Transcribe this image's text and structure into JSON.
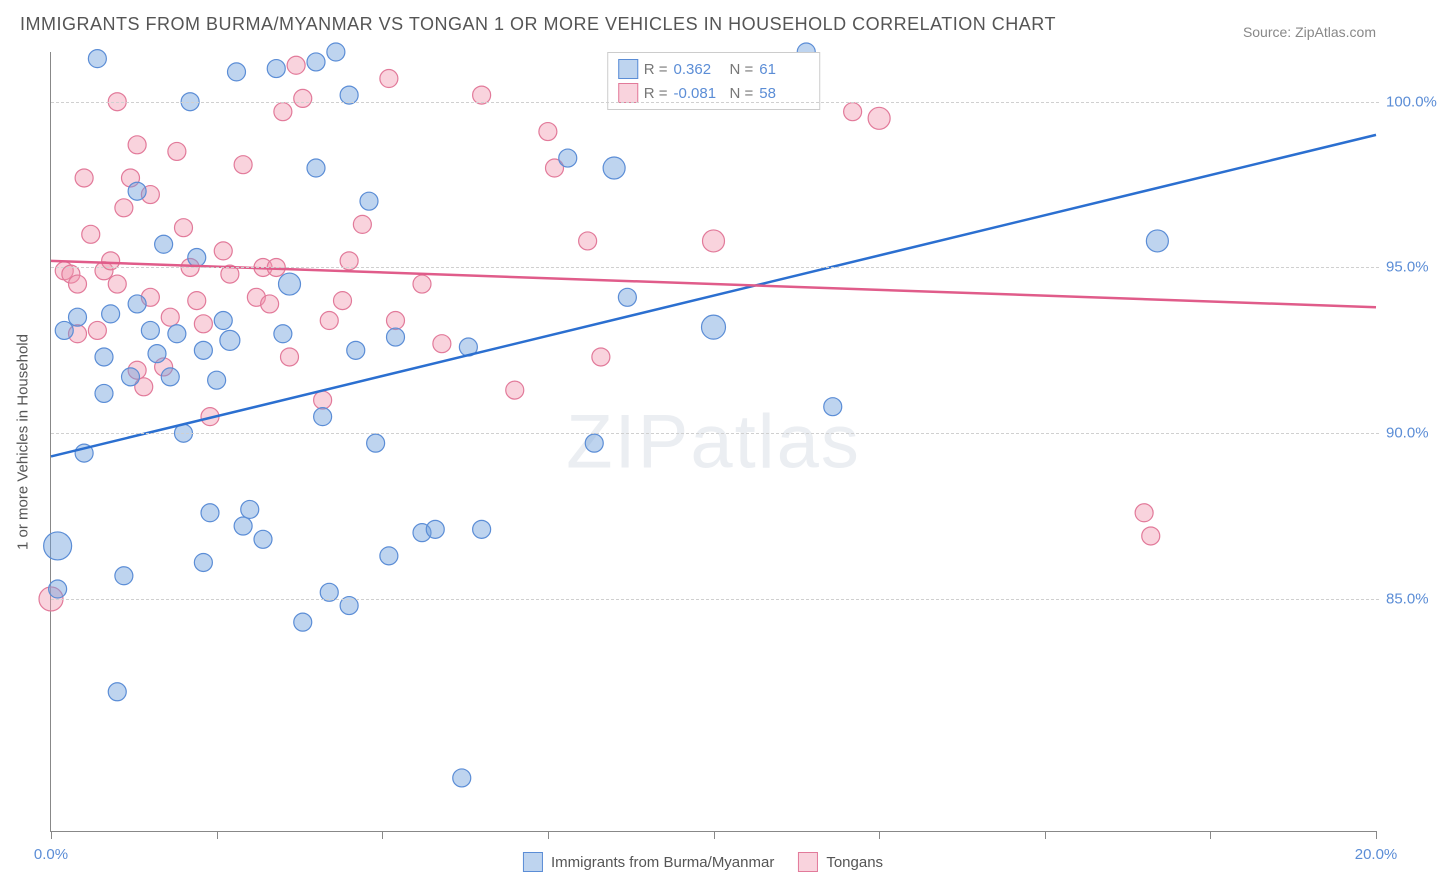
{
  "title": "IMMIGRANTS FROM BURMA/MYANMAR VS TONGAN 1 OR MORE VEHICLES IN HOUSEHOLD CORRELATION CHART",
  "source": "Source: ZipAtlas.com",
  "watermark": {
    "brand_a": "ZIP",
    "brand_b": "atlas"
  },
  "chart": {
    "type": "scatter",
    "x_axis": {
      "min": 0.0,
      "max": 20.0,
      "tick_labels": [
        "0.0%",
        "20.0%"
      ],
      "tick_positions_minor_pct": [
        0,
        12.5,
        25,
        37.5,
        50,
        62.5,
        75,
        87.5,
        100
      ],
      "label_color": "#5b8dd6",
      "label_fontsize": 15
    },
    "y_axis": {
      "min": 78.0,
      "max": 101.5,
      "label": "1 or more Vehicles in Household",
      "grid_values": [
        85.0,
        90.0,
        95.0,
        100.0
      ],
      "grid_labels": [
        "85.0%",
        "90.0%",
        "95.0%",
        "100.0%"
      ],
      "grid_color": "#d0d0d0",
      "label_color": "#555555",
      "tick_label_color": "#5b8dd6",
      "label_fontsize": 15
    },
    "series": [
      {
        "id": "burma",
        "name": "Immigrants from Burma/Myanmar",
        "marker_fill": "rgba(110,160,220,0.45)",
        "marker_stroke": "#5b8dd6",
        "line_color": "#2b6fd0",
        "line_width": 2.5,
        "r_value": "0.362",
        "n_value": "61",
        "trend": {
          "x1": 0,
          "y1": 89.3,
          "x2": 20,
          "y2": 99.0
        },
        "points": [
          [
            0.1,
            86.6,
            14
          ],
          [
            0.2,
            93.1,
            9
          ],
          [
            0.4,
            93.5,
            9
          ],
          [
            0.5,
            89.4,
            9
          ],
          [
            0.7,
            101.3,
            9
          ],
          [
            0.8,
            92.3,
            9
          ],
          [
            0.8,
            91.2,
            9
          ],
          [
            0.9,
            93.6,
            9
          ],
          [
            1.0,
            82.2,
            9
          ],
          [
            1.1,
            85.7,
            9
          ],
          [
            1.2,
            91.7,
            9
          ],
          [
            1.3,
            93.9,
            9
          ],
          [
            1.3,
            97.3,
            9
          ],
          [
            1.5,
            93.1,
            9
          ],
          [
            1.6,
            92.4,
            9
          ],
          [
            1.7,
            95.7,
            9
          ],
          [
            1.8,
            91.7,
            9
          ],
          [
            1.9,
            93.0,
            9
          ],
          [
            2.0,
            90.0,
            9
          ],
          [
            2.1,
            100.0,
            9
          ],
          [
            2.2,
            95.3,
            9
          ],
          [
            2.3,
            92.5,
            9
          ],
          [
            2.3,
            86.1,
            9
          ],
          [
            2.4,
            87.6,
            9
          ],
          [
            2.5,
            91.6,
            9
          ],
          [
            2.6,
            93.4,
            9
          ],
          [
            2.7,
            92.8,
            10
          ],
          [
            2.8,
            100.9,
            9
          ],
          [
            2.9,
            87.2,
            9
          ],
          [
            3.0,
            87.7,
            9
          ],
          [
            3.2,
            86.8,
            9
          ],
          [
            3.4,
            101.0,
            9
          ],
          [
            3.5,
            93.0,
            9
          ],
          [
            3.6,
            94.5,
            11
          ],
          [
            3.8,
            84.3,
            9
          ],
          [
            4.0,
            98.0,
            9
          ],
          [
            4.0,
            101.2,
            9
          ],
          [
            4.1,
            90.5,
            9
          ],
          [
            4.2,
            85.2,
            9
          ],
          [
            4.3,
            101.5,
            9
          ],
          [
            4.5,
            100.2,
            9
          ],
          [
            4.5,
            84.8,
            9
          ],
          [
            4.6,
            92.5,
            9
          ],
          [
            4.8,
            97.0,
            9
          ],
          [
            4.9,
            89.7,
            9
          ],
          [
            5.1,
            86.3,
            9
          ],
          [
            5.2,
            92.9,
            9
          ],
          [
            5.6,
            87.0,
            9
          ],
          [
            5.8,
            87.1,
            9
          ],
          [
            6.2,
            79.6,
            9
          ],
          [
            6.3,
            92.6,
            9
          ],
          [
            6.5,
            87.1,
            9
          ],
          [
            7.8,
            98.3,
            9
          ],
          [
            8.2,
            89.7,
            9
          ],
          [
            8.5,
            98.0,
            11
          ],
          [
            8.7,
            94.1,
            9
          ],
          [
            10.0,
            93.2,
            12
          ],
          [
            11.4,
            101.5,
            9
          ],
          [
            11.8,
            90.8,
            9
          ],
          [
            16.7,
            95.8,
            11
          ],
          [
            0.1,
            85.3,
            9
          ]
        ]
      },
      {
        "id": "tongan",
        "name": "Tongans",
        "marker_fill": "rgba(240,150,175,0.42)",
        "marker_stroke": "#e27a9a",
        "line_color": "#e05c8a",
        "line_width": 2.5,
        "r_value": "-0.081",
        "n_value": "58",
        "trend": {
          "x1": 0,
          "y1": 95.2,
          "x2": 20,
          "y2": 93.8
        },
        "points": [
          [
            0.0,
            85.0,
            12
          ],
          [
            0.2,
            94.9,
            9
          ],
          [
            0.3,
            94.8,
            9
          ],
          [
            0.4,
            93.0,
            9
          ],
          [
            0.5,
            97.7,
            9
          ],
          [
            0.6,
            96.0,
            9
          ],
          [
            0.7,
            93.1,
            9
          ],
          [
            0.8,
            94.9,
            9
          ],
          [
            0.9,
            95.2,
            9
          ],
          [
            1.0,
            100.0,
            9
          ],
          [
            1.1,
            96.8,
            9
          ],
          [
            1.2,
            97.7,
            9
          ],
          [
            1.3,
            91.9,
            9
          ],
          [
            1.3,
            98.7,
            9
          ],
          [
            1.4,
            91.4,
            9
          ],
          [
            1.5,
            94.1,
            9
          ],
          [
            1.5,
            97.2,
            9
          ],
          [
            1.7,
            92.0,
            9
          ],
          [
            1.8,
            93.5,
            9
          ],
          [
            1.9,
            98.5,
            9
          ],
          [
            2.0,
            96.2,
            9
          ],
          [
            2.1,
            95.0,
            9
          ],
          [
            2.2,
            94.0,
            9
          ],
          [
            2.3,
            93.3,
            9
          ],
          [
            2.4,
            90.5,
            9
          ],
          [
            2.6,
            95.5,
            9
          ],
          [
            2.7,
            94.8,
            9
          ],
          [
            2.9,
            98.1,
            9
          ],
          [
            3.1,
            94.1,
            9
          ],
          [
            3.2,
            95.0,
            9
          ],
          [
            3.3,
            93.9,
            9
          ],
          [
            3.4,
            95.0,
            9
          ],
          [
            3.5,
            99.7,
            9
          ],
          [
            3.6,
            92.3,
            9
          ],
          [
            3.7,
            101.1,
            9
          ],
          [
            3.8,
            100.1,
            9
          ],
          [
            4.1,
            91.0,
            9
          ],
          [
            4.2,
            93.4,
            9
          ],
          [
            4.4,
            94.0,
            9
          ],
          [
            4.5,
            95.2,
            9
          ],
          [
            4.7,
            96.3,
            9
          ],
          [
            5.1,
            100.7,
            9
          ],
          [
            5.2,
            93.4,
            9
          ],
          [
            5.6,
            94.5,
            9
          ],
          [
            5.9,
            92.7,
            9
          ],
          [
            6.5,
            100.2,
            9
          ],
          [
            7.0,
            91.3,
            9
          ],
          [
            7.5,
            99.1,
            9
          ],
          [
            7.6,
            98.0,
            9
          ],
          [
            8.1,
            95.8,
            9
          ],
          [
            8.3,
            92.3,
            9
          ],
          [
            10.0,
            95.8,
            11
          ],
          [
            12.1,
            99.7,
            9
          ],
          [
            12.5,
            99.5,
            11
          ],
          [
            16.5,
            87.6,
            9
          ],
          [
            16.6,
            86.9,
            9
          ],
          [
            0.4,
            94.5,
            9
          ],
          [
            1.0,
            94.5,
            9
          ]
        ]
      }
    ],
    "legend_top": {
      "r_label": "R  =",
      "n_label": "N  ="
    },
    "background_color": "#ffffff"
  }
}
